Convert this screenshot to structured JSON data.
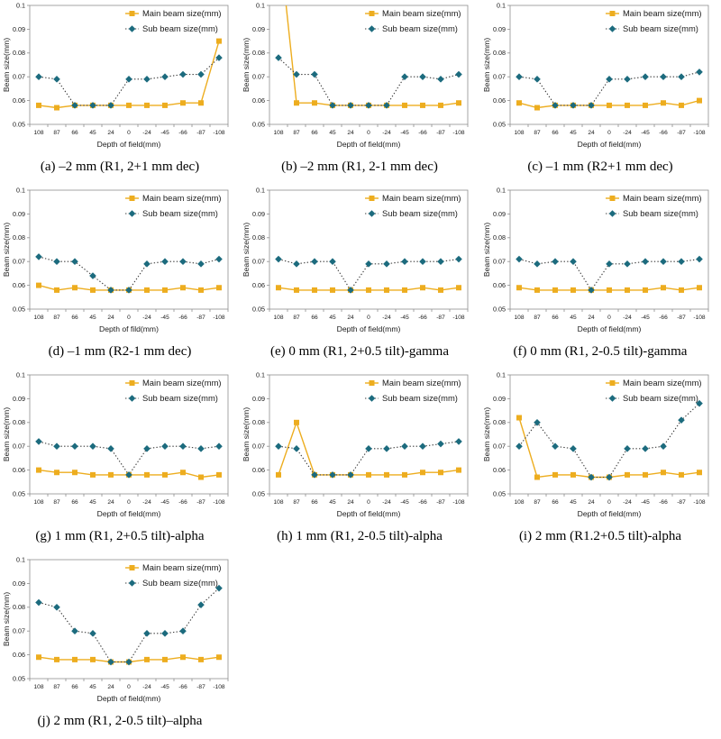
{
  "page": {
    "background": "#ffffff"
  },
  "colors": {
    "main_series": "#EDAD1F",
    "sub_marker": "#1C6B7E",
    "sub_line": "#3D3D3D",
    "axis": "#8F8F8F",
    "text": "#1A1A1A"
  },
  "legend": {
    "main_label": "Main beam size(mm)",
    "sub_label": "Sub beam size(mm)",
    "position": "top-right-inside"
  },
  "chart_data": [
    {
      "id": "a",
      "type": "line",
      "caption": "(a) –2 mm (R1, 2+1 mm dec)",
      "xlabel": "Depth of field(mm)",
      "ylabel": "Beam size(mm)",
      "categories": [
        "108",
        "87",
        "66",
        "45",
        "24",
        "0",
        "-24",
        "-45",
        "-66",
        "-87",
        "-108"
      ],
      "ylim": [
        0.05,
        0.1
      ],
      "ytick_labels": [
        "0.1",
        "0.09",
        "0.08",
        "0.07",
        "0.06",
        "0.05"
      ],
      "grid": false,
      "series": [
        {
          "name": "Main beam size(mm)",
          "values": [
            0.058,
            0.057,
            0.058,
            0.058,
            0.058,
            0.058,
            0.058,
            0.058,
            0.059,
            0.059,
            0.085
          ]
        },
        {
          "name": "Sub beam size(mm)",
          "values": [
            0.07,
            0.069,
            0.058,
            0.058,
            0.058,
            0.069,
            0.069,
            0.07,
            0.071,
            0.071,
            0.078
          ]
        }
      ]
    },
    {
      "id": "b",
      "type": "line",
      "caption": "(b) –2 mm (R1, 2-1 mm dec)",
      "xlabel": "Depth of field(mm)",
      "ylabel": "Beam size(mm)",
      "categories": [
        "108",
        "87",
        "66",
        "45",
        "24",
        "0",
        "-24",
        "-45",
        "-66",
        "-87",
        "-108"
      ],
      "ylim": [
        0.05,
        0.1
      ],
      "ytick_labels": [
        "0.1",
        "0.09",
        "0.08",
        "0.07",
        "0.06",
        "0.05"
      ],
      "grid": false,
      "note": "first main point exceeds axis maximum and is clipped at 0.1",
      "series": [
        {
          "name": "Main beam size(mm)",
          "values": [
            0.13,
            0.059,
            0.059,
            0.058,
            0.058,
            0.058,
            0.058,
            0.058,
            0.058,
            0.058,
            0.059
          ]
        },
        {
          "name": "Sub beam size(mm)",
          "values": [
            0.078,
            0.071,
            0.071,
            0.058,
            0.058,
            0.058,
            0.058,
            0.07,
            0.07,
            0.069,
            0.071
          ]
        }
      ]
    },
    {
      "id": "c",
      "type": "line",
      "caption": "(c) –1 mm (R2+1 mm dec)",
      "xlabel": "Depth of field(mm)",
      "ylabel": "Beam size(mm)",
      "categories": [
        "108",
        "87",
        "66",
        "45",
        "24",
        "0",
        "-24",
        "-45",
        "-66",
        "-87",
        "-108"
      ],
      "ylim": [
        0.05,
        0.1
      ],
      "ytick_labels": [
        "0.1",
        "0.09",
        "0.08",
        "0.07",
        "0.06",
        "0.05"
      ],
      "grid": false,
      "series": [
        {
          "name": "Main beam size(mm)",
          "values": [
            0.059,
            0.057,
            0.058,
            0.058,
            0.058,
            0.058,
            0.058,
            0.058,
            0.059,
            0.058,
            0.06
          ]
        },
        {
          "name": "Sub beam size(mm)",
          "values": [
            0.07,
            0.069,
            0.058,
            0.058,
            0.058,
            0.069,
            0.069,
            0.07,
            0.07,
            0.07,
            0.072
          ]
        }
      ]
    },
    {
      "id": "d",
      "type": "line",
      "caption": "(d) –1 mm (R2-1 mm dec)",
      "xlabel": "Depth of fild(mm)",
      "ylabel": "Beam size(mm)",
      "categories": [
        "108",
        "87",
        "66",
        "45",
        "24",
        "0",
        "-24",
        "-45",
        "-66",
        "-87",
        "-108"
      ],
      "ylim": [
        0.05,
        0.1
      ],
      "ytick_labels": [
        "0.1",
        "0.09",
        "0.08",
        "0.07",
        "0.06",
        "0.05"
      ],
      "grid": false,
      "series": [
        {
          "name": "Main beam size(mm)",
          "values": [
            0.06,
            0.058,
            0.059,
            0.058,
            0.058,
            0.058,
            0.058,
            0.058,
            0.059,
            0.058,
            0.059
          ]
        },
        {
          "name": "Sub beam size(mm)",
          "values": [
            0.072,
            0.07,
            0.07,
            0.064,
            0.058,
            0.058,
            0.069,
            0.07,
            0.07,
            0.069,
            0.071
          ]
        }
      ]
    },
    {
      "id": "e",
      "type": "line",
      "caption": "(e) 0 mm (R1, 2+0.5 tilt)-gamma",
      "xlabel": "Depth of field(mm)",
      "ylabel": "Beam size(mm)",
      "categories": [
        "108",
        "87",
        "66",
        "45",
        "24",
        "0",
        "-24",
        "-45",
        "-66",
        "-87",
        "-108"
      ],
      "ylim": [
        0.05,
        0.1
      ],
      "ytick_labels": [
        "0.1",
        "0.09",
        "0.08",
        "0.07",
        "0.06",
        "0.05"
      ],
      "grid": false,
      "series": [
        {
          "name": "Main beam size(mm)",
          "values": [
            0.059,
            0.058,
            0.058,
            0.058,
            0.058,
            0.058,
            0.058,
            0.058,
            0.059,
            0.058,
            0.059
          ]
        },
        {
          "name": "Sub beam size(mm)",
          "values": [
            0.071,
            0.069,
            0.07,
            0.07,
            0.058,
            0.069,
            0.069,
            0.07,
            0.07,
            0.07,
            0.071
          ]
        }
      ]
    },
    {
      "id": "f",
      "type": "line",
      "caption": "(f) 0 mm (R1, 2-0.5 tilt)-gamma",
      "xlabel": "Depth of field(mm)",
      "ylabel": "Beam size(mm)",
      "categories": [
        "108",
        "87",
        "66",
        "45",
        "24",
        "0",
        "-24",
        "-45",
        "-66",
        "-87",
        "-108"
      ],
      "ylim": [
        0.05,
        0.1
      ],
      "ytick_labels": [
        "0.1",
        "0.09",
        "0.08",
        "0.07",
        "0.06",
        "0.05"
      ],
      "grid": false,
      "series": [
        {
          "name": "Main beam size(mm)",
          "values": [
            0.059,
            0.058,
            0.058,
            0.058,
            0.058,
            0.058,
            0.058,
            0.058,
            0.059,
            0.058,
            0.059
          ]
        },
        {
          "name": "Sub beam size(mm)",
          "values": [
            0.071,
            0.069,
            0.07,
            0.07,
            0.058,
            0.069,
            0.069,
            0.07,
            0.07,
            0.07,
            0.071
          ]
        }
      ]
    },
    {
      "id": "g",
      "type": "line",
      "caption": "(g) 1 mm (R1, 2+0.5 tilt)-alpha",
      "xlabel": "Depth of field(mm)",
      "ylabel": "Beam size(mm)",
      "categories": [
        "108",
        "87",
        "66",
        "45",
        "24",
        "0",
        "-24",
        "-45",
        "-66",
        "-87",
        "-108"
      ],
      "ylim": [
        0.05,
        0.1
      ],
      "ytick_labels": [
        "0.1",
        "0.09",
        "0.08",
        "0.07",
        "0.06",
        "0.05"
      ],
      "grid": false,
      "series": [
        {
          "name": "Main beam size(mm)",
          "values": [
            0.06,
            0.059,
            0.059,
            0.058,
            0.058,
            0.058,
            0.058,
            0.058,
            0.059,
            0.057,
            0.058
          ]
        },
        {
          "name": "Sub beam size(mm)",
          "values": [
            0.072,
            0.07,
            0.07,
            0.07,
            0.069,
            0.058,
            0.069,
            0.07,
            0.07,
            0.069,
            0.07
          ]
        }
      ]
    },
    {
      "id": "h",
      "type": "line",
      "caption": "(h) 1 mm (R1, 2-0.5 tilt)-alpha",
      "xlabel": "Depth of field(mm)",
      "ylabel": "Beam size(mm)",
      "categories": [
        "108",
        "87",
        "66",
        "45",
        "24",
        "0",
        "-24",
        "-45",
        "-66",
        "-87",
        "-108"
      ],
      "ylim": [
        0.05,
        0.1
      ],
      "ytick_labels": [
        "0.1",
        "0.09",
        "0.08",
        "0.07",
        "0.06",
        "0.05"
      ],
      "grid": false,
      "series": [
        {
          "name": "Main beam size(mm)",
          "values": [
            0.058,
            0.08,
            0.058,
            0.058,
            0.058,
            0.058,
            0.058,
            0.058,
            0.059,
            0.059,
            0.06
          ]
        },
        {
          "name": "Sub beam size(mm)",
          "values": [
            0.07,
            0.069,
            0.058,
            0.058,
            0.058,
            0.069,
            0.069,
            0.07,
            0.07,
            0.071,
            0.072
          ]
        }
      ]
    },
    {
      "id": "i",
      "type": "line",
      "caption": "(i) 2 mm (R1.2+0.5 tilt)-alpha",
      "xlabel": "Depth of field(mm)",
      "ylabel": "Beam size(mm)",
      "categories": [
        "108",
        "87",
        "66",
        "45",
        "24",
        "0",
        "-24",
        "-45",
        "-66",
        "-87",
        "-108"
      ],
      "ylim": [
        0.05,
        0.1
      ],
      "ytick_labels": [
        "0.1",
        "0.09",
        "0.08",
        "0.07",
        "0.06",
        "0.05"
      ],
      "grid": false,
      "series": [
        {
          "name": "Main beam size(mm)",
          "values": [
            0.082,
            0.057,
            0.058,
            0.058,
            0.057,
            0.057,
            0.058,
            0.058,
            0.059,
            0.058,
            0.059
          ]
        },
        {
          "name": "Sub beam size(mm)",
          "values": [
            0.07,
            0.08,
            0.07,
            0.069,
            0.057,
            0.057,
            0.069,
            0.069,
            0.07,
            0.081,
            0.088
          ]
        }
      ]
    },
    {
      "id": "j",
      "type": "line",
      "caption": "(j) 2 mm (R1, 2-0.5 tilt)–alpha",
      "xlabel": "Depth of field(mm)",
      "ylabel": "Beam size(mm)",
      "categories": [
        "108",
        "87",
        "66",
        "45",
        "24",
        "0",
        "-24",
        "-45",
        "-66",
        "-87",
        "-108"
      ],
      "ylim": [
        0.05,
        0.1
      ],
      "ytick_labels": [
        "0.1",
        "0.09",
        "0.08",
        "0.07",
        "0.06",
        "0.05"
      ],
      "grid": false,
      "series": [
        {
          "name": "Main beam size(mm)",
          "values": [
            0.059,
            0.058,
            0.058,
            0.058,
            0.057,
            0.057,
            0.058,
            0.058,
            0.059,
            0.058,
            0.059
          ]
        },
        {
          "name": "Sub beam size(mm)",
          "values": [
            0.082,
            0.08,
            0.07,
            0.069,
            0.057,
            0.057,
            0.069,
            0.069,
            0.07,
            0.081,
            0.088
          ]
        }
      ]
    }
  ]
}
